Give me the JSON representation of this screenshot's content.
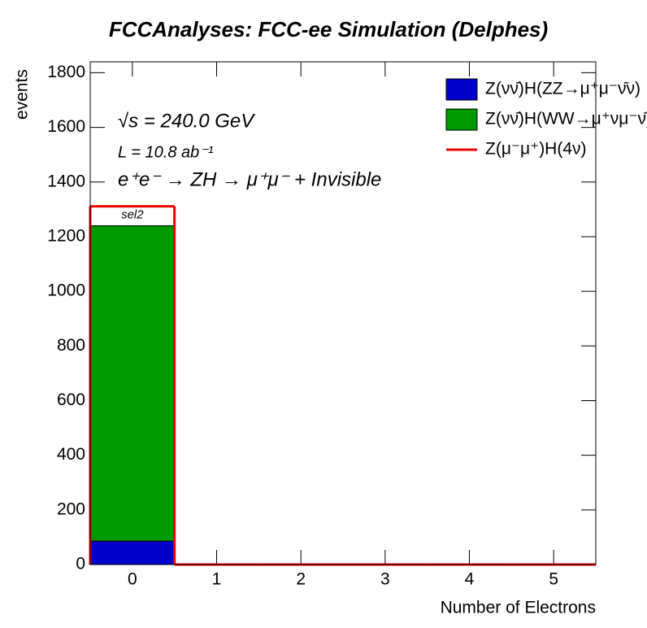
{
  "chart_data": {
    "type": "histogram",
    "title": "FCCAnalyses: FCC-ee Simulation (Delphes)",
    "x_label": "Number of Electrons",
    "y_label": "events",
    "annotations": [
      "√s = 240.0 GeV",
      "L = 10.8 ab⁻¹",
      "e⁺e⁻ → ZH → μ⁺μ⁻ + Invisible",
      "sel2"
    ],
    "bins": [
      -0.5,
      0.5,
      1.5,
      2.5,
      3.5,
      4.5,
      5.5
    ],
    "xlim": [
      -0.5,
      5.5
    ],
    "xticks": [
      0,
      1,
      2,
      3,
      4,
      5
    ],
    "ylim": [
      0,
      1840
    ],
    "yticks": [
      0,
      200,
      400,
      600,
      800,
      1000,
      1200,
      1400,
      1600,
      1800
    ],
    "legend": "upper right",
    "series": [
      {
        "name": "Z(νν̄)H(ZZ→μ⁺μ⁻ν̄ν)",
        "color": "#0000cc",
        "histtype": "stacked",
        "values": [
          86,
          0,
          0,
          0,
          0,
          0
        ]
      },
      {
        "name": "Z(νν̄)H(WW→μ⁺νμ⁻ν̄)",
        "color": "#009900",
        "histtype": "stacked",
        "values": [
          1154,
          0,
          0,
          0,
          0,
          0
        ]
      },
      {
        "name": "Z(μ⁻μ⁺)H(4ν)",
        "color": "#ee0000",
        "histtype": "step",
        "values": [
          1311,
          0,
          0,
          0,
          0,
          0
        ]
      }
    ]
  }
}
